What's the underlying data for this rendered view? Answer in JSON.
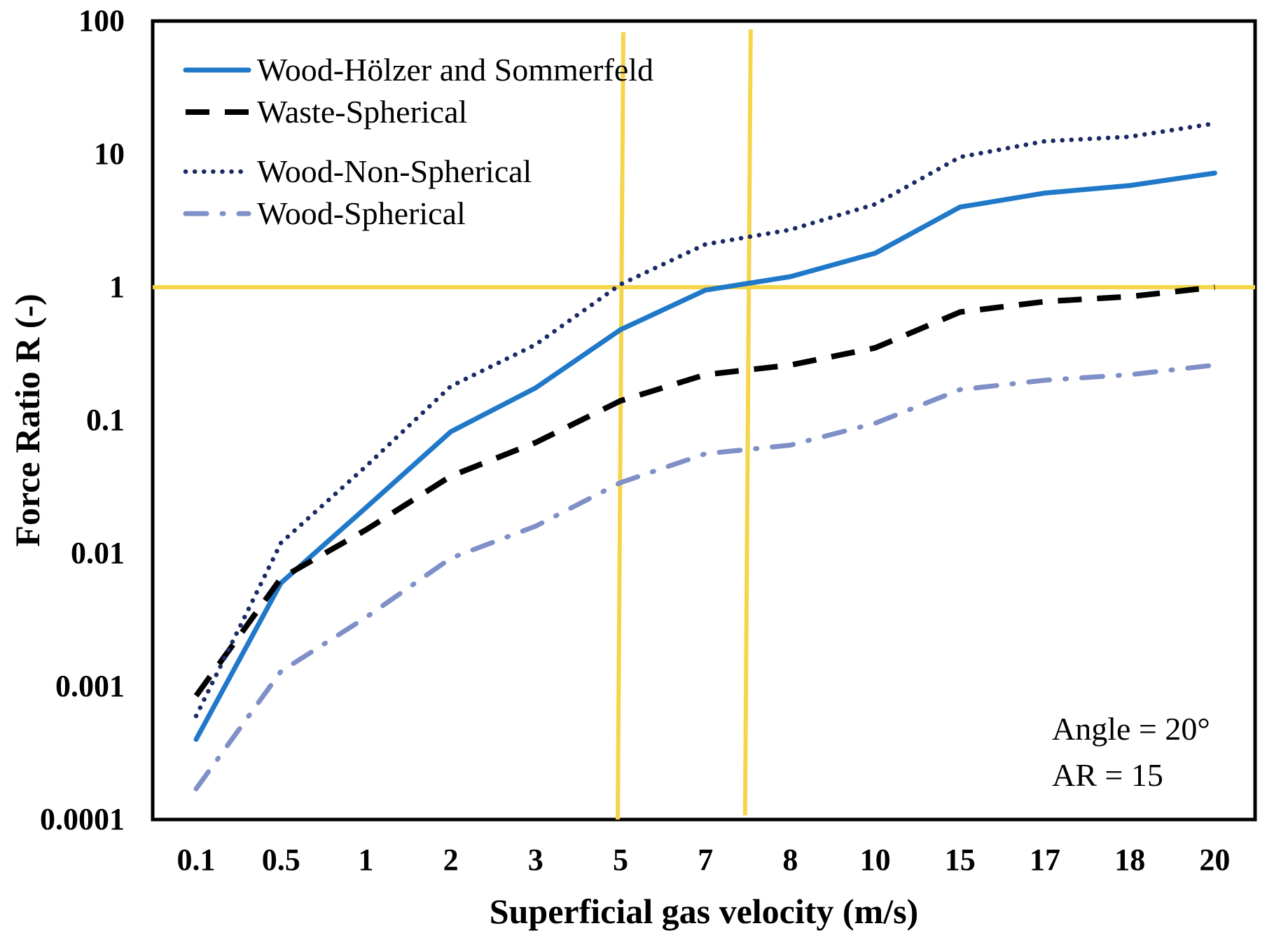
{
  "chart_data": {
    "type": "line",
    "title": "",
    "xlabel": "Superficial gas velocity (m/s)",
    "ylabel": "Force Ratio R (-)",
    "yscale": "log",
    "ylim": [
      0.0001,
      100
    ],
    "y_ticks": [
      {
        "value": 0.0001,
        "label": "0.0001"
      },
      {
        "value": 0.001,
        "label": "0.001"
      },
      {
        "value": 0.01,
        "label": "0.01"
      },
      {
        "value": 0.1,
        "label": "0.1"
      },
      {
        "value": 1,
        "label": "1"
      },
      {
        "value": 10,
        "label": "10"
      },
      {
        "value": 100,
        "label": "100"
      }
    ],
    "categories": [
      "0.1",
      "0.5",
      "1",
      "2",
      "3",
      "5",
      "7",
      "8",
      "10",
      "15",
      "17",
      "18",
      "20"
    ],
    "series": [
      {
        "name": "Wood-Hölzer and Sommerfeld",
        "color": "#1f78c8",
        "dash": "solid",
        "values": [
          0.0004,
          0.006,
          0.022,
          0.082,
          0.175,
          0.48,
          0.95,
          1.2,
          1.8,
          4.0,
          5.1,
          5.8,
          7.2
        ]
      },
      {
        "name": "Waste-Spherical",
        "color": "#000000",
        "dash": "dash",
        "values": [
          0.00085,
          0.0065,
          0.015,
          0.038,
          0.068,
          0.14,
          0.22,
          0.26,
          0.35,
          0.65,
          0.78,
          0.85,
          1.0
        ]
      },
      {
        "name": "Wood-Non-Spherical",
        "color": "#1a2a66",
        "dash": "dot",
        "values": [
          0.0006,
          0.012,
          0.045,
          0.18,
          0.37,
          1.05,
          2.1,
          2.7,
          4.2,
          9.5,
          12.5,
          13.5,
          17
        ]
      },
      {
        "name": "Wood-Spherical",
        "color": "#7f8fc7",
        "dash": "dashdot",
        "values": [
          0.00017,
          0.0013,
          0.0033,
          0.0092,
          0.016,
          0.034,
          0.056,
          0.065,
          0.095,
          0.17,
          0.2,
          0.22,
          0.26
        ]
      }
    ],
    "reference_lines": {
      "color": "#f5d54a",
      "horizontal_y": 1,
      "vertical_x_categories": [
        "5",
        "7.5"
      ]
    },
    "legend_position": "top-left",
    "annotations": [
      "Angle = 20°",
      "AR = 15"
    ]
  }
}
